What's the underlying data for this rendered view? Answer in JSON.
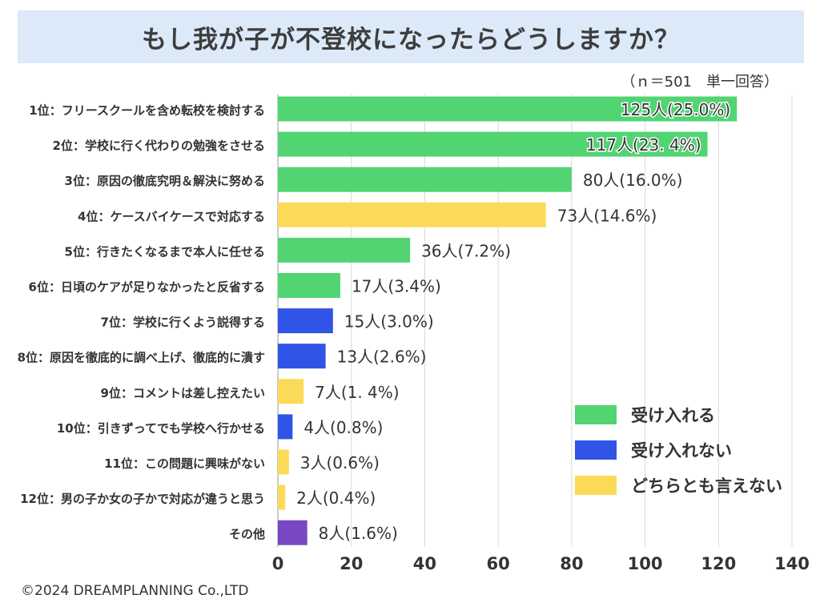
{
  "title": "もし我が子が不登校になったらどうしますか？",
  "sample_note": "（ｎ＝501　単一回答）",
  "copyright": "©2024 DREAMPLANNING Co.,LTD",
  "colors": {
    "accept": "#52d473",
    "reject": "#2f54e6",
    "neutral": "#fcda59",
    "other": "#7747c4",
    "title_bg": "#dbe9f8"
  },
  "legend": [
    {
      "key": "accept",
      "label": "受け入れる"
    },
    {
      "key": "reject",
      "label": "受け入れない"
    },
    {
      "key": "neutral",
      "label": "どちらとも言えない"
    }
  ],
  "chart_data": {
    "type": "bar",
    "orientation": "horizontal",
    "title": "もし我が子が不登校になったらどうしますか？",
    "xlim": [
      0,
      140
    ],
    "xticks": [
      0,
      20,
      40,
      60,
      80,
      100,
      120,
      140
    ],
    "grid": true,
    "categories": [
      "1位：フリースクールを含め転校を検討する",
      "2位：学校に行く代わりの勉強をさせる",
      "3位：原因の徹底究明＆解決に努める",
      "4位：ケースバイケースで対応する",
      "5位：行きたくなるまで本人に任せる",
      "6位：日頃のケアが足りなかったと反省する",
      "7位：学校に行くよう説得する",
      "8位：原因を徹底的に調べ上げ、徹底的に潰す",
      "9位：コメントは差し控えたい",
      "10位：引きずってでも学校へ行かせる",
      "11位：この問題に興味がない",
      "12位：男の子か女の子かで対応が違うと思う",
      "その他"
    ],
    "values": [
      125,
      117,
      80,
      73,
      36,
      17,
      15,
      13,
      7,
      4,
      3,
      2,
      8
    ],
    "labels": [
      "125人(25.0%)",
      "117人(23. 4%)",
      "80人(16.0%)",
      "73人(14.6%)",
      "36人(7.2%)",
      "17人(3.4%)",
      "15人(3.0%)",
      "13人(2.6%)",
      "7人(1. 4%)",
      "4人(0.8%)",
      "3人(0.6%)",
      "2人(0.4%)",
      "8人(1.6%)"
    ],
    "groups": [
      "accept",
      "accept",
      "accept",
      "neutral",
      "accept",
      "accept",
      "reject",
      "reject",
      "neutral",
      "reject",
      "neutral",
      "neutral",
      "other"
    ]
  }
}
